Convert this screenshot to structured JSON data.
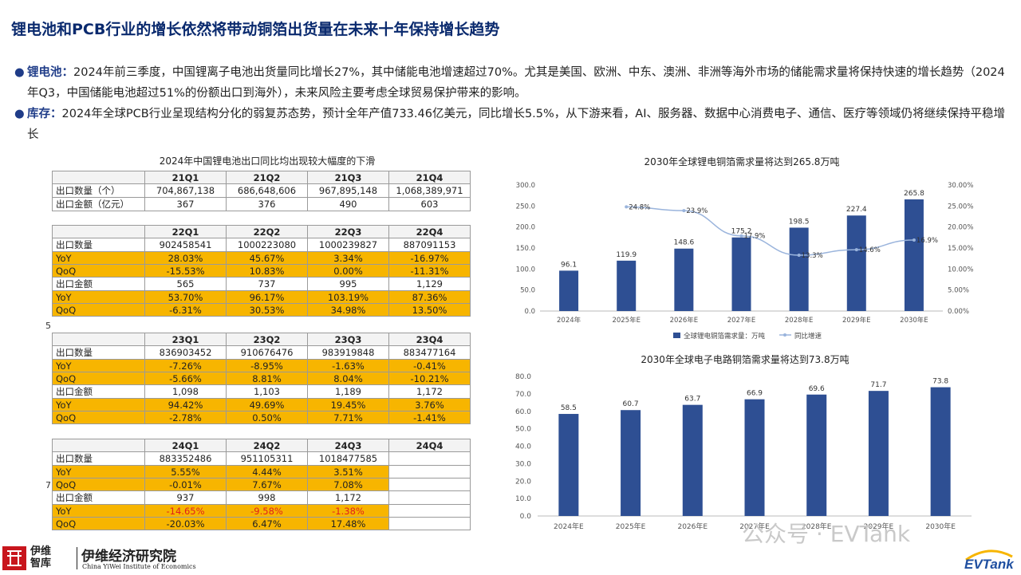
{
  "title": "锂电池和PCB行业的增长依然将带动铜箔出货量在未来十年保持增长趋势",
  "bullets": [
    {
      "label": "锂电池：",
      "text": "2024年前三季度，中国锂离子电池出货量同比增长27%，其中储能电池增速超过70%。尤其是美国、欧洲、中东、澳洲、非洲等海外市场的储能需求量将保持快速的增长趋势（2024年Q3，中国储能电池超过51%的份额出口到海外），未来风险主要考虑全球贸易保护带来的影响。"
    },
    {
      "label": "库存：",
      "text": "2024年全球PCB行业呈现结构分化的弱复苏态势，预计全年产值733.46亿美元，同比增长5.5%，从下游来看，AI、服务器、数据中心消费电子、通信、医疗等领域仍将继续保持平稳增长"
    }
  ],
  "table_caption": "2024年中国锂电池出口同比均出现较大幅度的下滑",
  "side_marks": [
    "5",
    "7"
  ],
  "tables": [
    {
      "header": [
        "",
        "21Q1",
        "21Q2",
        "21Q3",
        "21Q4"
      ],
      "rows": [
        {
          "label": "出口数量（个）",
          "values": [
            "704,867,138",
            "686,648,606",
            "967,895,148",
            "1,068,389,971"
          ],
          "style": "w"
        },
        {
          "label": "出口金额（亿元）",
          "values": [
            "367",
            "376",
            "490",
            "603"
          ],
          "style": "w"
        }
      ]
    },
    {
      "header": [
        "",
        "22Q1",
        "22Q2",
        "22Q3",
        "22Q4"
      ],
      "rows": [
        {
          "label": "出口数量",
          "values": [
            "902458541",
            "1000223080",
            "1000239827",
            "887091153"
          ],
          "style": "w"
        },
        {
          "label": "YoY",
          "values": [
            "28.03%",
            "45.67%",
            "3.34%",
            "-16.97%"
          ],
          "style": "y"
        },
        {
          "label": "QoQ",
          "values": [
            "-15.53%",
            "10.83%",
            "0.00%",
            "-11.31%"
          ],
          "style": "y"
        },
        {
          "label": "出口金额",
          "values": [
            "565",
            "737",
            "995",
            "1,129"
          ],
          "style": "w"
        },
        {
          "label": "YoY",
          "values": [
            "53.70%",
            "96.17%",
            "103.19%",
            "87.36%"
          ],
          "style": "y"
        },
        {
          "label": "QoQ",
          "values": [
            "-6.31%",
            "30.53%",
            "34.98%",
            "13.50%"
          ],
          "style": "y"
        }
      ]
    },
    {
      "header": [
        "",
        "23Q1",
        "23Q2",
        "23Q3",
        "23Q4"
      ],
      "rows": [
        {
          "label": "出口数量",
          "values": [
            "836903452",
            "910676476",
            "983919848",
            "883477164"
          ],
          "style": "w"
        },
        {
          "label": "YoY",
          "values": [
            "-7.26%",
            "-8.95%",
            "-1.63%",
            "-0.41%"
          ],
          "style": "y"
        },
        {
          "label": "QoQ",
          "values": [
            "-5.66%",
            "8.81%",
            "8.04%",
            "-10.21%"
          ],
          "style": "y"
        },
        {
          "label": "出口金额",
          "values": [
            "1,098",
            "1,103",
            "1,189",
            "1,172"
          ],
          "style": "w"
        },
        {
          "label": "YoY",
          "values": [
            "94.42%",
            "49.69%",
            "19.45%",
            "3.76%"
          ],
          "style": "y"
        },
        {
          "label": "QoQ",
          "values": [
            "-2.78%",
            "0.50%",
            "7.71%",
            "-1.41%"
          ],
          "style": "y"
        }
      ]
    },
    {
      "header": [
        "",
        "24Q1",
        "24Q2",
        "24Q3",
        "24Q4"
      ],
      "rows": [
        {
          "label": "出口数量",
          "values": [
            "883352486",
            "951105311",
            "1018477585",
            ""
          ],
          "style": "w"
        },
        {
          "label": "YoY",
          "values": [
            "5.55%",
            "4.44%",
            "3.51%",
            ""
          ],
          "style": "y"
        },
        {
          "label": "QoQ",
          "values": [
            "-0.01%",
            "7.67%",
            "7.08%",
            ""
          ],
          "style": "y"
        },
        {
          "label": "出口金额",
          "values": [
            "937",
            "998",
            "1,172",
            ""
          ],
          "style": "w"
        },
        {
          "label": "YoY",
          "values": [
            "-14.65%",
            "-9.58%",
            "-1.38%",
            ""
          ],
          "style": "y",
          "red": true
        },
        {
          "label": "QoQ",
          "values": [
            "-20.03%",
            "6.47%",
            "17.48%",
            ""
          ],
          "style": "y"
        }
      ]
    }
  ],
  "colors": {
    "bar": "#2e4f93",
    "line": "#9ab4dc",
    "yellow": "#f7b500",
    "title": "#0a2a6e",
    "negative": "#e0201b"
  },
  "chart_data": [
    {
      "type": "bar",
      "title": "2030年全球锂电铜箔需求量将达到265.8万吨",
      "categories": [
        "2024年",
        "2025年E",
        "2026年E",
        "2027年E",
        "2028年E",
        "2029年E",
        "2030年E"
      ],
      "series": [
        {
          "name": "全球锂电铜箔需求量：万吨",
          "type": "bar",
          "axis": "left",
          "values": [
            96.1,
            119.9,
            148.6,
            175.2,
            198.5,
            227.4,
            265.8
          ]
        },
        {
          "name": "同比增速",
          "type": "line",
          "axis": "right",
          "values": [
            null,
            24.8,
            23.9,
            17.9,
            13.3,
            14.6,
            16.9
          ]
        }
      ],
      "ylim": [
        0,
        300
      ],
      "yticks": [
        "0.0",
        "50.0",
        "100.0",
        "150.0",
        "200.0",
        "250.0",
        "300.0"
      ],
      "y2lim": [
        0,
        30
      ],
      "y2ticks": [
        "0.00%",
        "5.00%",
        "10.00%",
        "15.00%",
        "20.00%",
        "25.00%",
        "30.00%"
      ],
      "value_labels": [
        "96.1",
        "119.9",
        "148.6",
        "175.2",
        "198.5",
        "227.4",
        "265.8"
      ],
      "line_labels": [
        "",
        "24.8%",
        "23.9%",
        "17.9%",
        "13.3%",
        "14.6%",
        "16.9%"
      ],
      "legend": "bottom"
    },
    {
      "type": "bar",
      "title": "2030年全球电子电路铜箔需求量将达到73.8万吨",
      "categories": [
        "2024年E",
        "2025年E",
        "2026年E",
        "2027年E",
        "2028年E",
        "2029年E",
        "2030年E"
      ],
      "values": [
        58.5,
        60.7,
        63.7,
        66.9,
        69.6,
        71.7,
        73.8
      ],
      "ylim": [
        0,
        80
      ],
      "yticks": [
        "0.0",
        "10.0",
        "20.0",
        "30.0",
        "40.0",
        "50.0",
        "60.0",
        "70.0",
        "80.0"
      ],
      "value_labels": [
        "58.5",
        "60.7",
        "63.7",
        "66.9",
        "69.6",
        "71.7",
        "73.8"
      ]
    }
  ],
  "footer": {
    "logo_text": "伊维智库",
    "org_zh": "伊维经济研究院",
    "org_en": "China YiWei Institute of Economics"
  },
  "watermark": "公众号 · EVTank",
  "brand": "EVTank"
}
